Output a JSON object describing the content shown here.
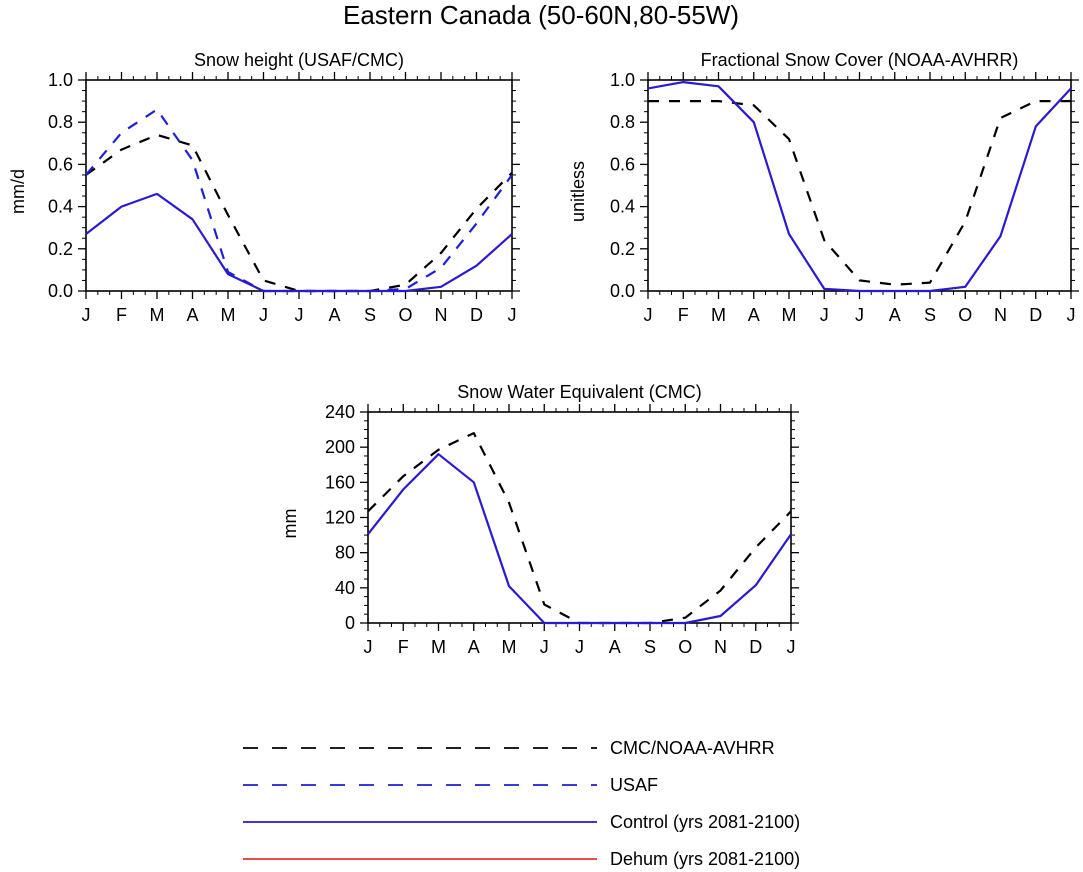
{
  "figure": {
    "title": "Eastern Canada (50-60N,80-55W)"
  },
  "colors": {
    "obs": "#000000",
    "usaf": "#1f1fd6",
    "control": "#2a1ad0",
    "dehum": "#e8332f"
  },
  "legend": {
    "entries": [
      {
        "label": "CMC/NOAA-AVHRR",
        "color": "#000000",
        "dash": "dashed"
      },
      {
        "label": "USAF",
        "color": "#1f1fd6",
        "dash": "dashed"
      },
      {
        "label": "Control (yrs 2081-2100)",
        "color": "#2a1ad0",
        "dash": "solid"
      },
      {
        "label": "Dehum (yrs 2081-2100)",
        "color": "#e8332f",
        "dash": "solid"
      }
    ]
  },
  "chart_data": [
    {
      "type": "line",
      "title": "Snow height (USAF/CMC)",
      "ylabel": "mm/d",
      "xlabel": "",
      "categories": [
        "J",
        "F",
        "M",
        "A",
        "M",
        "J",
        "J",
        "A",
        "S",
        "O",
        "N",
        "D",
        "J"
      ],
      "ylim": [
        0,
        1.0
      ],
      "yticks": [
        0,
        0.2,
        0.4,
        0.6,
        0.8,
        1.0
      ],
      "ytick_labels": [
        "0.0",
        "0.2",
        "0.4",
        "0.6",
        "0.8",
        "1.0"
      ],
      "series": [
        {
          "name": "CMC/NOAA-AVHRR",
          "color": "#000000",
          "dash": "dashed",
          "values": [
            0.55,
            0.67,
            0.74,
            0.69,
            0.36,
            0.05,
            0.0,
            0.0,
            0.0,
            0.03,
            0.18,
            0.39,
            0.56
          ]
        },
        {
          "name": "USAF",
          "color": "#1f1fd6",
          "dash": "dashed",
          "values": [
            0.55,
            0.75,
            0.86,
            0.62,
            0.09,
            0.0,
            0.0,
            0.0,
            0.0,
            0.01,
            0.11,
            0.32,
            0.55
          ]
        },
        {
          "name": "Control (yrs 2081-2100)",
          "color": "#2a1ad0",
          "dash": "solid",
          "values": [
            0.27,
            0.4,
            0.46,
            0.34,
            0.08,
            0.0,
            0.0,
            0.0,
            0.0,
            0.0,
            0.02,
            0.12,
            0.27
          ]
        }
      ]
    },
    {
      "type": "line",
      "title": "Fractional Snow Cover (NOAA-AVHRR)",
      "ylabel": "unitless",
      "xlabel": "",
      "categories": [
        "J",
        "F",
        "M",
        "A",
        "M",
        "J",
        "J",
        "A",
        "S",
        "O",
        "N",
        "D",
        "J"
      ],
      "ylim": [
        0,
        1.0
      ],
      "yticks": [
        0,
        0.2,
        0.4,
        0.6,
        0.8,
        1.0
      ],
      "ytick_labels": [
        "0.0",
        "0.2",
        "0.4",
        "0.6",
        "0.8",
        "1.0"
      ],
      "series": [
        {
          "name": "CMC/NOAA-AVHRR",
          "color": "#000000",
          "dash": "dashed",
          "values": [
            0.9,
            0.9,
            0.9,
            0.88,
            0.72,
            0.24,
            0.05,
            0.03,
            0.04,
            0.33,
            0.82,
            0.9,
            0.9
          ]
        },
        {
          "name": "Control (yrs 2081-2100)",
          "color": "#2a1ad0",
          "dash": "solid",
          "values": [
            0.96,
            0.99,
            0.97,
            0.8,
            0.27,
            0.01,
            0.0,
            0.0,
            0.0,
            0.02,
            0.26,
            0.78,
            0.96
          ]
        }
      ]
    },
    {
      "type": "line",
      "title": "Snow Water Equivalent (CMC)",
      "ylabel": "mm",
      "xlabel": "",
      "categories": [
        "J",
        "F",
        "M",
        "A",
        "M",
        "J",
        "J",
        "A",
        "S",
        "O",
        "N",
        "D",
        "J"
      ],
      "ylim": [
        0,
        240
      ],
      "yticks": [
        0,
        40,
        80,
        120,
        160,
        200,
        240
      ],
      "ytick_labels": [
        "0",
        "40",
        "80",
        "120",
        "160",
        "200",
        "240"
      ],
      "series": [
        {
          "name": "CMC/NOAA-AVHRR",
          "color": "#000000",
          "dash": "dashed",
          "values": [
            127,
            167,
            197,
            216,
            137,
            21,
            0,
            0,
            0,
            6,
            37,
            86,
            127
          ]
        },
        {
          "name": "Control (yrs 2081-2100)",
          "color": "#2a1ad0",
          "dash": "solid",
          "values": [
            101,
            152,
            192,
            160,
            42,
            0,
            0,
            0,
            0,
            0,
            8,
            43,
            101
          ]
        }
      ]
    }
  ]
}
